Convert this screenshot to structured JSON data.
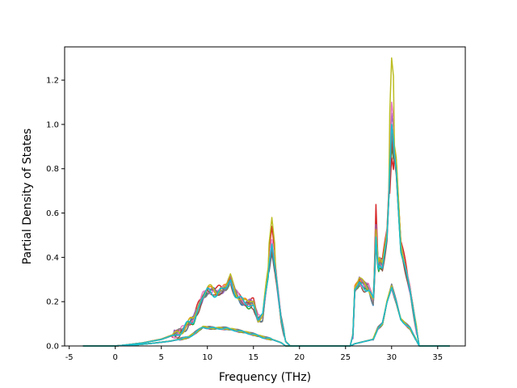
{
  "chart_data": {
    "type": "line",
    "title": "",
    "xlabel": "Frequency (THz)",
    "ylabel": "Partial Density of States",
    "xlim": [
      -5.5,
      38
    ],
    "ylim": [
      0,
      1.35
    ],
    "xticks": [
      -5,
      0,
      5,
      10,
      15,
      20,
      25,
      30,
      35
    ],
    "yticks": [
      0.0,
      0.2,
      0.4,
      0.6,
      0.8,
      1.0,
      1.2
    ],
    "ytick_labels": [
      "0.0",
      "0.2",
      "0.4",
      "0.6",
      "0.8",
      "1.0",
      "1.2"
    ],
    "grid": false,
    "legend": "none",
    "series": [
      {
        "color": "#1f77b4",
        "scale": 1.0,
        "peak30": 0.95,
        "peak17": 0.42,
        "peak28": 0.45
      },
      {
        "color": "#ff7f0e",
        "scale": 1.03,
        "peak30": 1.0,
        "peak17": 0.45,
        "peak28": 0.5
      },
      {
        "color": "#2ca02c",
        "scale": 0.98,
        "peak30": 0.9,
        "peak17": 0.47,
        "peak28": 0.48
      },
      {
        "color": "#d62728",
        "scale": 1.05,
        "peak30": 0.85,
        "peak17": 0.54,
        "peak28": 0.64
      },
      {
        "color": "#9467bd",
        "scale": 1.01,
        "peak30": 1.05,
        "peak17": 0.44,
        "peak28": 0.55
      },
      {
        "color": "#8c564b",
        "scale": 0.97,
        "peak30": 0.92,
        "peak17": 0.43,
        "peak28": 0.47
      },
      {
        "color": "#e377c2",
        "scale": 1.02,
        "peak30": 1.1,
        "peak17": 0.48,
        "peak28": 0.52
      },
      {
        "color": "#7f7f7f",
        "scale": 1.0,
        "peak30": 0.96,
        "peak17": 0.45,
        "peak28": 0.46
      },
      {
        "color": "#bcbd22",
        "scale": 1.04,
        "peak30": 1.3,
        "peak17": 0.58,
        "peak28": 0.5
      },
      {
        "color": "#17becf",
        "scale": 0.99,
        "peak30": 1.0,
        "peak17": 0.46,
        "peak28": 0.49
      }
    ]
  }
}
